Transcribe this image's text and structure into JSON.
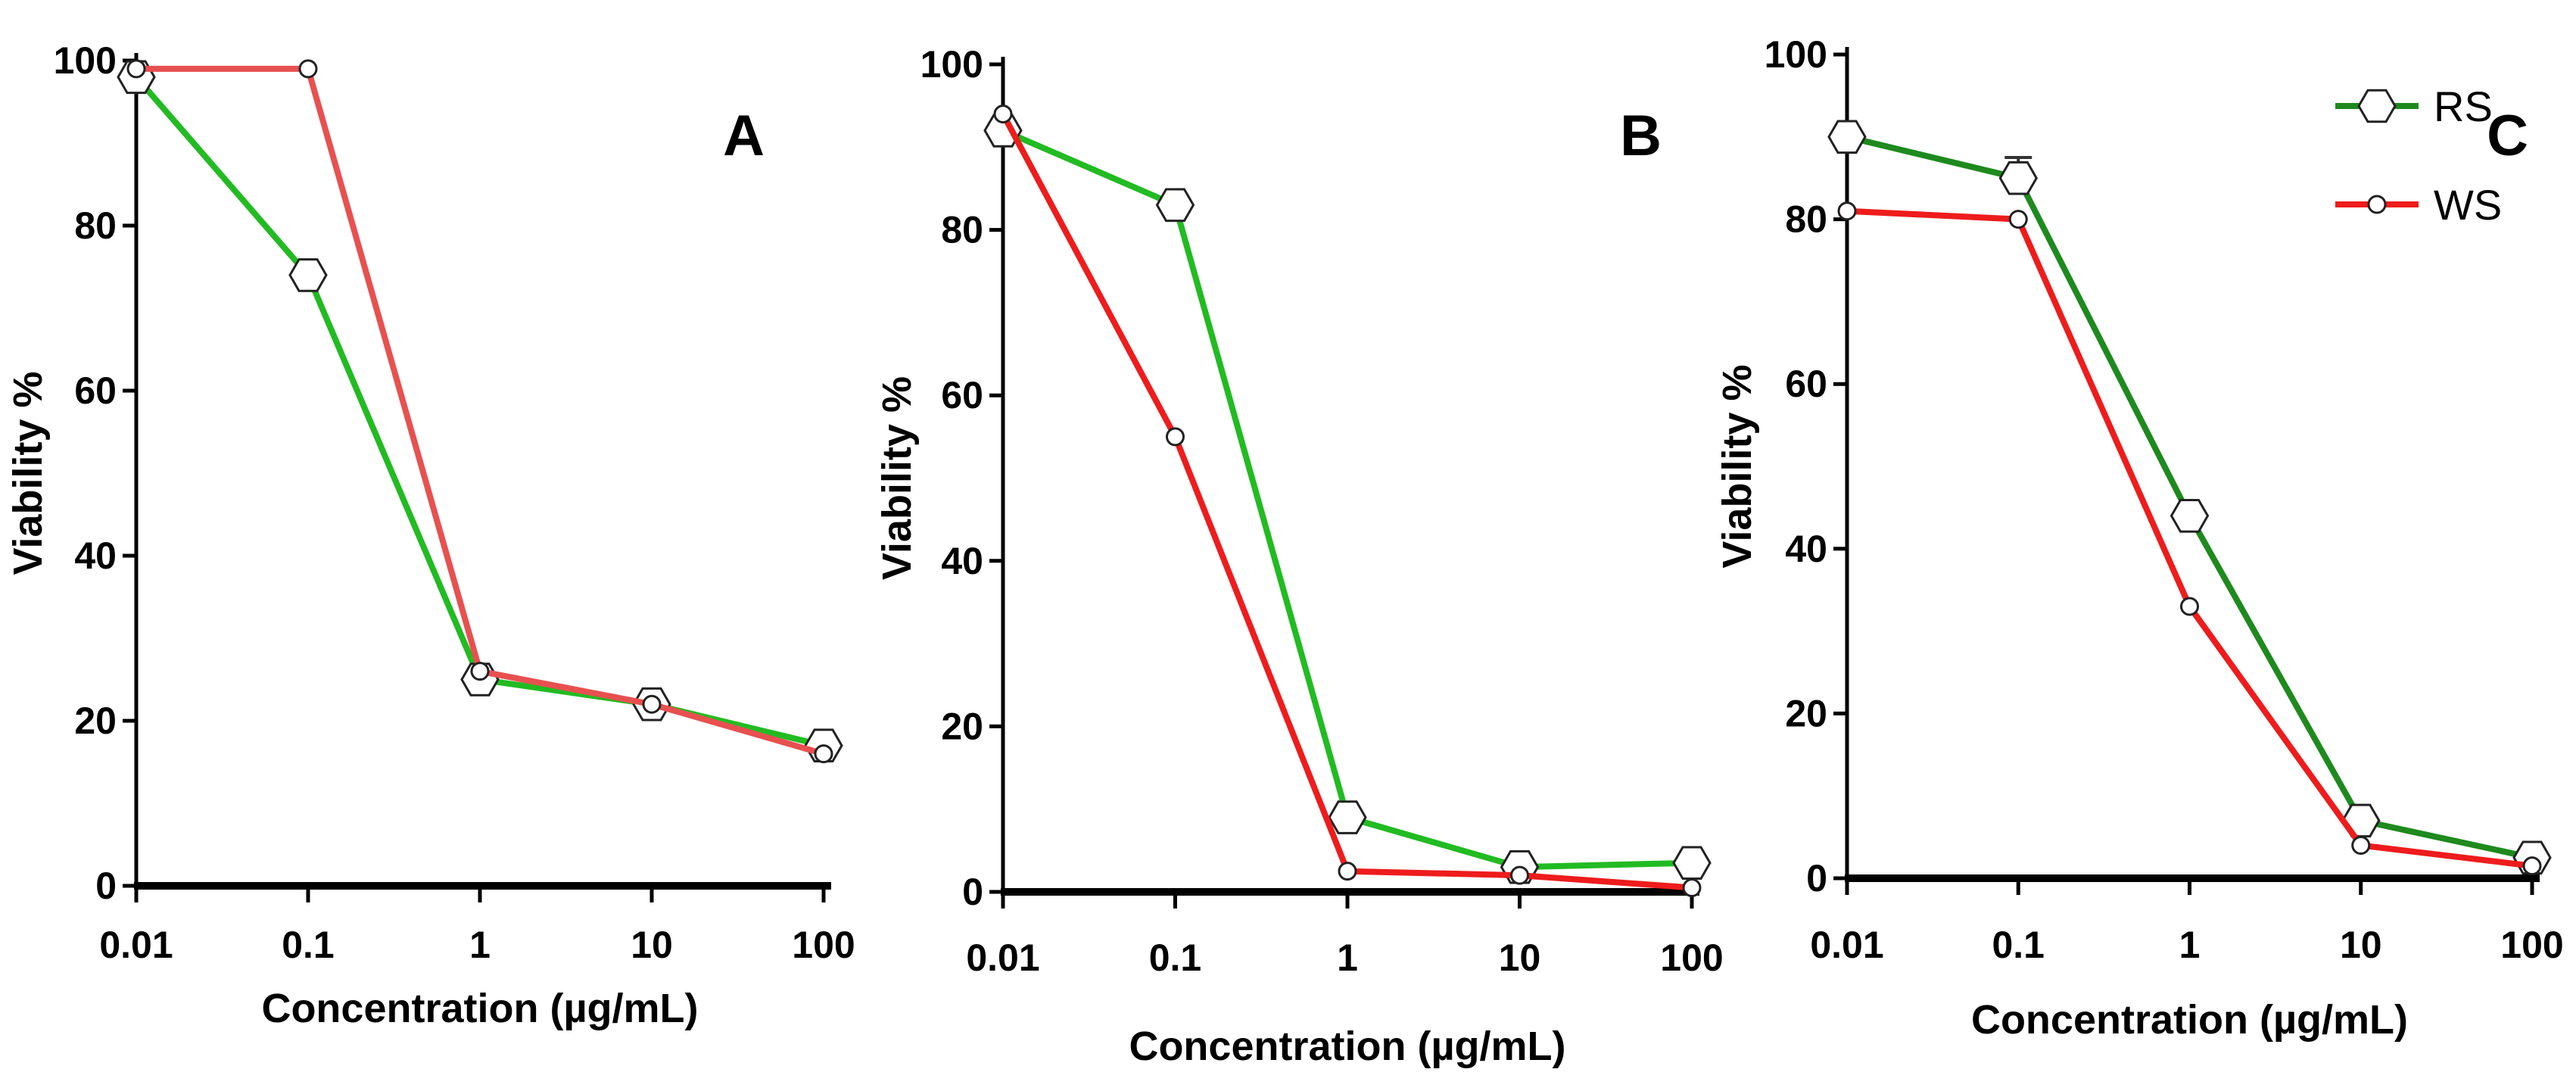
{
  "charts": [
    {
      "panel": "A",
      "type": "line",
      "title": "",
      "xlabel": "Concentration (µg/mL)",
      "ylabel": "Viability %",
      "xscale": "log",
      "categories": [
        "0.01",
        "0.1",
        "1",
        "10",
        "100"
      ],
      "x": [
        0.01,
        0.1,
        1,
        10,
        100
      ],
      "ylim": [
        0,
        100
      ],
      "yticks": [
        "0",
        "20",
        "40",
        "60",
        "80",
        "100"
      ],
      "series": [
        {
          "name": "RS",
          "color": "#22bb22",
          "marker": "hexagon",
          "values": [
            98,
            74,
            25,
            22,
            17
          ]
        },
        {
          "name": "WS",
          "color": "#e85050",
          "marker": "circle",
          "values": [
            99,
            99,
            26,
            22,
            16
          ]
        }
      ]
    },
    {
      "panel": "B",
      "type": "line",
      "title": "",
      "xlabel": "Concentration (µg/mL)",
      "ylabel": "Viability %",
      "xscale": "log",
      "categories": [
        "0.01",
        "0.1",
        "1",
        "10",
        "100"
      ],
      "x": [
        0.01,
        0.1,
        1,
        10,
        100
      ],
      "ylim": [
        0,
        100
      ],
      "yticks": [
        "0",
        "20",
        "40",
        "60",
        "80",
        "100"
      ],
      "series": [
        {
          "name": "RS",
          "color": "#22bb22",
          "marker": "hexagon",
          "values": [
            92,
            83,
            9,
            3,
            3.5
          ]
        },
        {
          "name": "WS",
          "color": "#ee1c1c",
          "marker": "circle",
          "values": [
            94,
            55,
            2.5,
            2,
            0.5
          ]
        }
      ]
    },
    {
      "panel": "C",
      "type": "line",
      "title": "",
      "xlabel": "Concentration (µg/mL)",
      "ylabel": "Viability %",
      "xscale": "log",
      "categories": [
        "0.01",
        "0.1",
        "1",
        "10",
        "100"
      ],
      "x": [
        0.01,
        0.1,
        1,
        10,
        100
      ],
      "ylim": [
        0,
        100
      ],
      "yticks": [
        "0",
        "20",
        "40",
        "60",
        "80",
        "100"
      ],
      "series": [
        {
          "name": "RS",
          "color": "#1e8a1e",
          "marker": "hexagon",
          "values": [
            90,
            85,
            44,
            7,
            2.5
          ],
          "errors": [
            0,
            2.5,
            0,
            0,
            0
          ]
        },
        {
          "name": "WS",
          "color": "#ee1c1c",
          "marker": "circle",
          "values": [
            81,
            80,
            33,
            4,
            1.5
          ]
        }
      ],
      "legend": {
        "position": "top-right",
        "entries": [
          "RS",
          "WS"
        ]
      }
    }
  ]
}
